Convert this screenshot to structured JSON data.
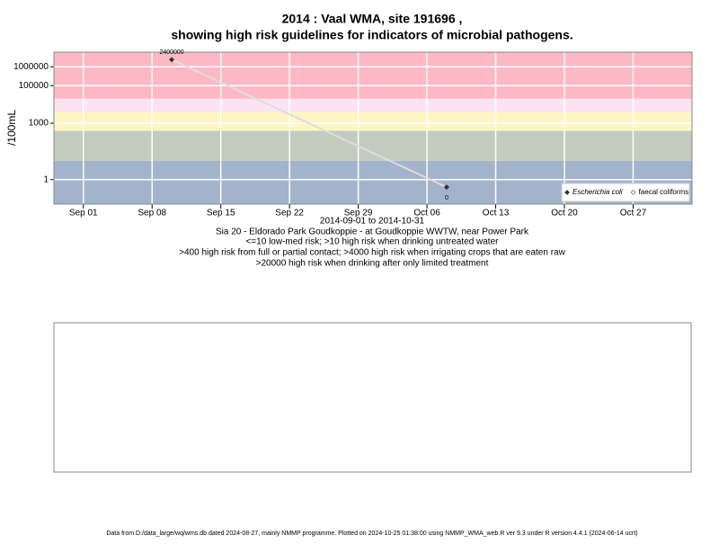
{
  "chart_data": {
    "type": "line",
    "title": "2014 : Vaal WMA, site 191696 ,",
    "subtitle": "showing high risk guidelines for indicators of microbial pathogens.",
    "y_label": "/100mL",
    "x_label": "2014-09-01 to 2014-10-31",
    "notes": [
      "Sia 20 - Eldorado Park Goudkoppie - at Goudkoppie WWTW, near Power Park",
      "<=10 low-med risk; >10 high risk when drinking untreated water",
      ">400 high risk from full or partial contact; >4000 high risk when irrigating crops that are eaten raw",
      ">20000 high risk when drinking after only limited treatment"
    ],
    "footer": "Data from D:/data_large/wq/wms.db dated 2024-08-27, mainly NMMP programme. Plotted on 2024-10-25 01:38:00 using NMMP_WMA_web.R ver 9.3 under R version 4.4.1 (2024-06-14 ucrt)",
    "x": [
      "2014-09-10",
      "2014-10-08"
    ],
    "series": [
      {
        "name": "Escherichia coli",
        "color": "#333333",
        "line_color": "#dddddd",
        "values": [
          2400000,
          0.4
        ],
        "value_labels": [
          "2400000",
          "0"
        ]
      },
      {
        "name": "faecal coliforms",
        "color": "#555555",
        "values": [
          null,
          null
        ]
      }
    ],
    "xlim": [
      "2014-08-29",
      "2014-11-02"
    ],
    "xticks": [
      {
        "value": "2014-09-01",
        "label": "Sep 01"
      },
      {
        "value": "2014-09-08",
        "label": "Sep 08"
      },
      {
        "value": "2014-09-15",
        "label": "Sep 15"
      },
      {
        "value": "2014-09-22",
        "label": "Sep 22"
      },
      {
        "value": "2014-09-29",
        "label": "Sep 29"
      },
      {
        "value": "2014-10-06",
        "label": "Oct 06"
      },
      {
        "value": "2014-10-13",
        "label": "Oct 13"
      },
      {
        "value": "2014-10-20",
        "label": "Oct 20"
      },
      {
        "value": "2014-10-27",
        "label": "Oct 27"
      }
    ],
    "ylim": [
      0.05,
      6000000
    ],
    "yticks": [
      1,
      1000,
      100000,
      1000000
    ],
    "log_y": true,
    "grid": true,
    "legend": "bottom-right",
    "bands": [
      {
        "from": 0.05,
        "to": 10,
        "color": "#a3b3cc"
      },
      {
        "from": 10,
        "to": 400,
        "color": "#c3ccbf"
      },
      {
        "from": 400,
        "to": 4000,
        "color": "#fdf5c6"
      },
      {
        "from": 4000,
        "to": 20000,
        "color": "#fde3ef"
      },
      {
        "from": 20000,
        "to": 6000000,
        "color": "#fdb8c5"
      }
    ]
  }
}
